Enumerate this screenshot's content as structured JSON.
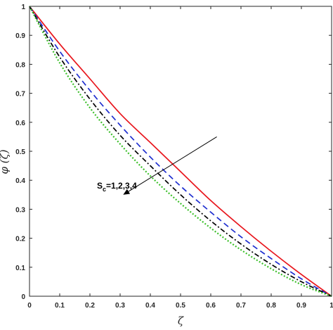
{
  "chart_data": {
    "type": "line",
    "title": "",
    "xlabel": "ζ",
    "ylabel": "φ (ζ)",
    "xlim": [
      0,
      1
    ],
    "ylim": [
      0,
      1
    ],
    "xticks": [
      "0",
      "0.1",
      "0.2",
      "0.3",
      "0.4",
      "0.5",
      "0.6",
      "0.7",
      "0.8",
      "0.9",
      "1"
    ],
    "yticks": [
      "0",
      "0.1",
      "0.2",
      "0.3",
      "0.4",
      "0.5",
      "0.6",
      "0.7",
      "0.8",
      "0.9",
      "1"
    ],
    "grid": false,
    "x": [
      0,
      0.1,
      0.2,
      0.3,
      0.4,
      0.5,
      0.6,
      0.7,
      0.8,
      0.9,
      1
    ],
    "series": [
      {
        "color": "#e8161d",
        "dash": "solid",
        "values": [
          1,
          0.87,
          0.75,
          0.63,
          0.53,
          0.43,
          0.33,
          0.24,
          0.155,
          0.075,
          0
        ]
      },
      {
        "color": "#1f2fd0",
        "dash": "dash",
        "values": [
          1,
          0.845,
          0.71,
          0.59,
          0.48,
          0.38,
          0.29,
          0.205,
          0.13,
          0.06,
          0
        ]
      },
      {
        "color": "#000000",
        "dash": "dashdot",
        "values": [
          1,
          0.825,
          0.68,
          0.555,
          0.45,
          0.35,
          0.26,
          0.18,
          0.11,
          0.05,
          0
        ]
      },
      {
        "color": "#3cbf2a",
        "dash": "dot",
        "values": [
          1,
          0.805,
          0.65,
          0.525,
          0.415,
          0.32,
          0.235,
          0.16,
          0.095,
          0.04,
          0
        ]
      }
    ],
    "annotation": {
      "label": "S",
      "label_sub": "c",
      "label_rest": "=1,2,3,4",
      "arrow_from": [
        0.62,
        0.55
      ],
      "arrow_to": [
        0.31,
        0.35
      ]
    }
  }
}
